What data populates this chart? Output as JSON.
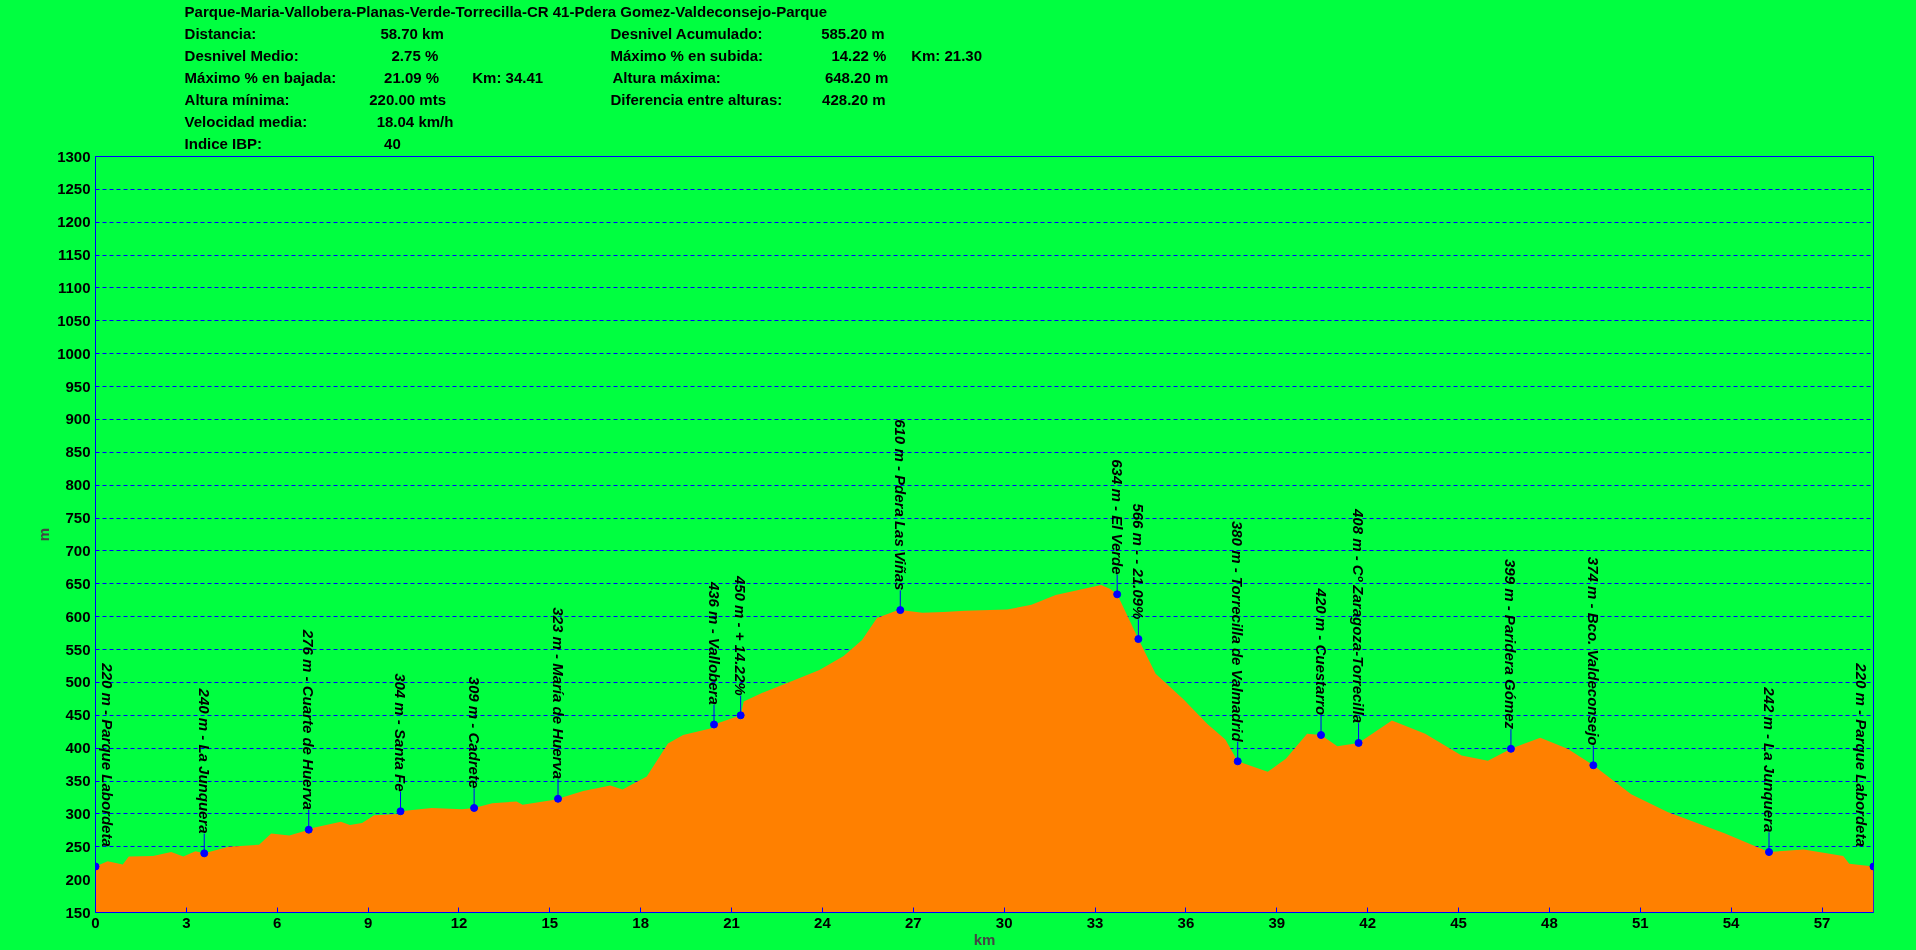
{
  "chart_data": {
    "type": "area",
    "title": "Parque-Maria-Vallobera-Planas-Verde-Torrecilla-CR 41-Pdera Gomez-Valdeconsejo-Parque",
    "xlabel": "km",
    "ylabel": "m",
    "x": [
      0,
      0.4,
      0.9,
      1.1,
      1.9,
      2.5,
      2.9,
      3.3,
      3.59,
      4.4,
      5.4,
      5.8,
      6.4,
      7.04,
      7.2,
      8.1,
      8.4,
      8.8,
      9.2,
      10.0,
      10.07,
      11.1,
      12.1,
      12.5,
      13.1,
      13.9,
      14.1,
      15.1,
      15.27,
      16.1,
      17.0,
      17.4,
      18.2,
      18.9,
      19.4,
      20.4,
      20.42,
      21.3,
      21.4,
      22.0,
      23.0,
      23.9,
      24.7,
      25.3,
      25.8,
      26.5,
      26.57,
      27.3,
      28.0,
      28.7,
      30.1,
      30.9,
      31.7,
      32.6,
      33.2,
      33.5,
      33.73,
      34.43,
      35.0,
      35.9,
      36.7,
      37.3,
      37.71,
      38.7,
      39.3,
      40.0,
      40.46,
      41.0,
      41.7,
      42.8,
      43.9,
      45.1,
      45.97,
      46.73,
      47.7,
      48.6,
      49.45,
      50.7,
      51.9,
      53.8,
      55.25,
      56.4,
      57.7,
      57.9,
      58.7
    ],
    "series": [
      {
        "color": "#ff8000",
        "values": [
          220,
          228,
          223,
          235,
          236,
          242,
          235,
          243,
          240,
          250,
          253,
          270,
          267,
          276,
          279,
          288,
          283,
          286,
          298,
          300,
          304,
          309,
          307,
          309,
          316,
          319,
          314,
          321,
          323,
          335,
          343,
          337,
          357,
          407,
          420,
          431,
          436,
          450,
          471,
          484,
          502,
          519,
          540,
          564,
          598,
          610,
          610,
          606,
          607,
          609,
          611,
          618,
          633,
          642,
          648,
          642,
          634,
          566,
          513,
          475,
          437,
          413,
          380,
          364,
          384,
          422,
          420,
          403,
          408,
          442,
          422,
          389,
          381,
          399,
          416,
          399,
          374,
          330,
          303,
          270,
          242,
          246,
          236,
          224,
          220
        ]
      }
    ],
    "xlim": [
      0,
      58.7
    ],
    "ylim": [
      150,
      1300
    ],
    "xticks": [
      0,
      3,
      6,
      9,
      12,
      15,
      18,
      21,
      24,
      27,
      30,
      33,
      36,
      39,
      42,
      45,
      48,
      51,
      54,
      57
    ],
    "yticks": [
      150,
      200,
      250,
      300,
      350,
      400,
      450,
      500,
      550,
      600,
      650,
      700,
      750,
      800,
      850,
      900,
      950,
      1000,
      1050,
      1100,
      1150,
      1200,
      1250,
      1300
    ],
    "grid": "y",
    "annotations": [
      {
        "text": "220 m - Parque Labordeta",
        "x": 0,
        "y": 220
      },
      {
        "text": "240 m - La Junquera",
        "x": 3.59,
        "y": 240
      },
      {
        "text": "276 m - Cuarte de Huerva",
        "x": 7.04,
        "y": 276
      },
      {
        "text": "304 m - Santa Fe",
        "x": 10.07,
        "y": 304
      },
      {
        "text": "309 m - Cadrete",
        "x": 12.5,
        "y": 309
      },
      {
        "text": "323 m - María de Huerva",
        "x": 15.27,
        "y": 323
      },
      {
        "text": "436 m - Vallobera",
        "x": 20.42,
        "y": 436
      },
      {
        "text": "450 m - + 14.22%",
        "x": 21.3,
        "y": 450
      },
      {
        "text": "610 m - Pdera Las Viñas",
        "x": 26.57,
        "y": 610
      },
      {
        "text": "634 m - El Verde",
        "x": 33.73,
        "y": 634
      },
      {
        "text": "566 m - - 21.09%",
        "x": 34.43,
        "y": 566
      },
      {
        "text": "380 m - Torrecilla de Valmadrid",
        "x": 37.71,
        "y": 380
      },
      {
        "text": "420 m - Cuestarro",
        "x": 40.46,
        "y": 420
      },
      {
        "text": "408 m - Cº Zaragoza-Torrecilla",
        "x": 41.7,
        "y": 408
      },
      {
        "text": "399 m - Paridera Gómez",
        "x": 46.73,
        "y": 399
      },
      {
        "text": "374 m - Bco. Valdeconsejo",
        "x": 49.45,
        "y": 374
      },
      {
        "text": "242 m - La Junquera",
        "x": 55.25,
        "y": 242
      },
      {
        "text": "220 m - Parque Labordeta",
        "x": 58.7,
        "y": 220
      },
      "Distancia:",
      "58.70 km",
      "Desnivel Acumulado:",
      "585.20 m",
      "Desnivel Medio:",
      "2.75 %",
      "Máximo % en subida:",
      "14.22 %",
      "Km: 21.30",
      "Máximo % en bajada:",
      "21.09 %",
      "Km: 34.41",
      "Altura máxima:",
      "648.20 m",
      "Altura mínima:",
      "220.00 mts",
      "Diferencia entre alturas:",
      "428.20 m",
      "Velocidad media:",
      "18.04 km/h",
      "Indice IBP:",
      "40"
    ]
  }
}
